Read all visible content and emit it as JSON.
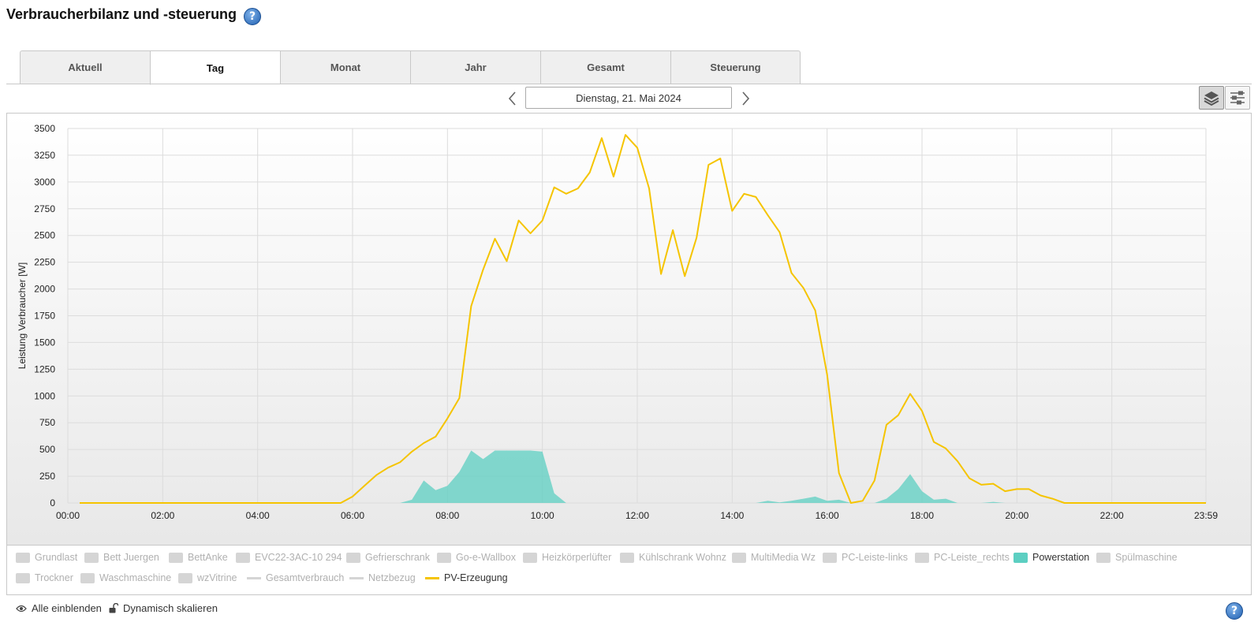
{
  "page": {
    "title": "Verbraucherbilanz und -steuerung"
  },
  "tabs": [
    {
      "label": "Aktuell",
      "active": false
    },
    {
      "label": "Tag",
      "active": true
    },
    {
      "label": "Monat",
      "active": false
    },
    {
      "label": "Jahr",
      "active": false
    },
    {
      "label": "Gesamt",
      "active": false
    },
    {
      "label": "Steuerung",
      "active": false
    }
  ],
  "date_nav": {
    "date": "Dienstag, 21. Mai 2024"
  },
  "chart_data": {
    "type": "area",
    "ylabel": "Leistung Verbraucher [W]",
    "ylim": [
      0,
      3500
    ],
    "yticks": [
      0,
      250,
      500,
      750,
      1000,
      1250,
      1500,
      1750,
      2000,
      2250,
      2500,
      2750,
      3000,
      3250,
      3500
    ],
    "xticks": [
      "00:00",
      "02:00",
      "04:00",
      "06:00",
      "08:00",
      "10:00",
      "12:00",
      "14:00",
      "16:00",
      "18:00",
      "20:00",
      "22:00",
      "23:59"
    ],
    "grid": true,
    "series": [
      {
        "name": "PV-Erzeugung",
        "kind": "line",
        "color": "#f5c400",
        "points": [
          [
            "00:15",
            0
          ],
          [
            "05:45",
            0
          ],
          [
            "06:00",
            60
          ],
          [
            "06:15",
            160
          ],
          [
            "06:30",
            260
          ],
          [
            "06:45",
            330
          ],
          [
            "07:00",
            380
          ],
          [
            "07:15",
            480
          ],
          [
            "07:30",
            560
          ],
          [
            "07:45",
            620
          ],
          [
            "08:00",
            790
          ],
          [
            "08:15",
            980
          ],
          [
            "08:30",
            1840
          ],
          [
            "08:45",
            2180
          ],
          [
            "09:00",
            2470
          ],
          [
            "09:15",
            2260
          ],
          [
            "09:30",
            2640
          ],
          [
            "09:45",
            2520
          ],
          [
            "10:00",
            2640
          ],
          [
            "10:15",
            2950
          ],
          [
            "10:30",
            2890
          ],
          [
            "10:45",
            2940
          ],
          [
            "11:00",
            3090
          ],
          [
            "11:15",
            3410
          ],
          [
            "11:30",
            3050
          ],
          [
            "11:45",
            3440
          ],
          [
            "12:00",
            3320
          ],
          [
            "12:15",
            2940
          ],
          [
            "12:30",
            2140
          ],
          [
            "12:45",
            2550
          ],
          [
            "13:00",
            2120
          ],
          [
            "13:15",
            2480
          ],
          [
            "13:30",
            3160
          ],
          [
            "13:45",
            3220
          ],
          [
            "14:00",
            2730
          ],
          [
            "14:15",
            2890
          ],
          [
            "14:30",
            2860
          ],
          [
            "14:45",
            2690
          ],
          [
            "15:00",
            2530
          ],
          [
            "15:15",
            2150
          ],
          [
            "15:30",
            2010
          ],
          [
            "15:45",
            1800
          ],
          [
            "16:00",
            1200
          ],
          [
            "16:15",
            280
          ],
          [
            "16:30",
            0
          ],
          [
            "16:45",
            20
          ],
          [
            "17:00",
            210
          ],
          [
            "17:15",
            730
          ],
          [
            "17:30",
            820
          ],
          [
            "17:45",
            1020
          ],
          [
            "18:00",
            860
          ],
          [
            "18:15",
            570
          ],
          [
            "18:30",
            510
          ],
          [
            "18:45",
            390
          ],
          [
            "19:00",
            230
          ],
          [
            "19:15",
            170
          ],
          [
            "19:30",
            180
          ],
          [
            "19:45",
            110
          ],
          [
            "20:00",
            130
          ],
          [
            "20:15",
            130
          ],
          [
            "20:30",
            70
          ],
          [
            "20:45",
            40
          ],
          [
            "21:00",
            0
          ],
          [
            "23:59",
            0
          ]
        ]
      },
      {
        "name": "Powerstation",
        "kind": "area",
        "color": "#5ccfc2",
        "points": [
          [
            "06:45",
            0
          ],
          [
            "07:00",
            0
          ],
          [
            "07:15",
            30
          ],
          [
            "07:30",
            210
          ],
          [
            "07:45",
            120
          ],
          [
            "08:00",
            160
          ],
          [
            "08:15",
            290
          ],
          [
            "08:30",
            490
          ],
          [
            "08:45",
            410
          ],
          [
            "09:00",
            490
          ],
          [
            "09:15",
            490
          ],
          [
            "09:30",
            490
          ],
          [
            "09:45",
            490
          ],
          [
            "10:00",
            480
          ],
          [
            "10:15",
            90
          ],
          [
            "10:30",
            0
          ],
          [
            "14:30",
            0
          ],
          [
            "14:45",
            20
          ],
          [
            "15:00",
            5
          ],
          [
            "15:15",
            20
          ],
          [
            "15:30",
            40
          ],
          [
            "15:45",
            60
          ],
          [
            "16:00",
            20
          ],
          [
            "16:15",
            30
          ],
          [
            "16:30",
            0
          ],
          [
            "17:00",
            0
          ],
          [
            "17:15",
            40
          ],
          [
            "17:30",
            130
          ],
          [
            "17:45",
            270
          ],
          [
            "18:00",
            110
          ],
          [
            "18:15",
            30
          ],
          [
            "18:30",
            40
          ],
          [
            "18:45",
            0
          ],
          [
            "19:15",
            0
          ],
          [
            "19:30",
            10
          ],
          [
            "19:45",
            0
          ]
        ]
      }
    ]
  },
  "legend": {
    "items": [
      {
        "label": "Grundlast",
        "marker": "box",
        "color": "#d5d5d5",
        "visible": false
      },
      {
        "label": "Bett Juergen",
        "marker": "box",
        "color": "#d5d5d5",
        "visible": false
      },
      {
        "label": "BettAnke",
        "marker": "box",
        "color": "#d5d5d5",
        "visible": false
      },
      {
        "label": "EVC22-3AC-10 294",
        "marker": "box",
        "color": "#d5d5d5",
        "visible": false
      },
      {
        "label": "Gefrierschrank",
        "marker": "box",
        "color": "#d5d5d5",
        "visible": false
      },
      {
        "label": "Go-e-Wallbox",
        "marker": "box",
        "color": "#d5d5d5",
        "visible": false
      },
      {
        "label": "Heizkörperlüfter",
        "marker": "box",
        "color": "#d5d5d5",
        "visible": false
      },
      {
        "label": "Kühlschrank Wohnz",
        "marker": "box",
        "color": "#d5d5d5",
        "visible": false
      },
      {
        "label": "MultiMedia Wz",
        "marker": "box",
        "color": "#d5d5d5",
        "visible": false
      },
      {
        "label": "PC-Leiste-links",
        "marker": "box",
        "color": "#d5d5d5",
        "visible": false
      },
      {
        "label": "PC-Leiste_rechts",
        "marker": "box",
        "color": "#d5d5d5",
        "visible": false
      },
      {
        "label": "Powerstation",
        "marker": "box",
        "color": "#5ccfc2",
        "visible": true
      },
      {
        "label": "Spülmaschine",
        "marker": "box",
        "color": "#d5d5d5",
        "visible": false
      },
      {
        "label": "Trockner",
        "marker": "box",
        "color": "#d5d5d5",
        "visible": false
      },
      {
        "label": "Waschmaschine",
        "marker": "box",
        "color": "#d5d5d5",
        "visible": false
      },
      {
        "label": "wzVitrine",
        "marker": "box",
        "color": "#d5d5d5",
        "visible": false
      },
      {
        "label": "Gesamtverbrauch",
        "marker": "line",
        "color": "#d5d5d5",
        "visible": false
      },
      {
        "label": "Netzbezug",
        "marker": "line",
        "color": "#d5d5d5",
        "visible": false
      },
      {
        "label": "PV-Erzeugung",
        "marker": "line",
        "color": "#f5c400",
        "visible": true
      }
    ]
  },
  "toolbar": {
    "show_all": "Alle einblenden",
    "dynamic_scale": "Dynamisch skalieren"
  },
  "help": {
    "symbol": "?"
  },
  "icons": {
    "help": "help-icon",
    "prev": "chevron-left-icon",
    "next": "chevron-right-icon",
    "stacked": "layers-icon",
    "settings": "sliders-icon",
    "eye": "eye-icon",
    "lock": "unlock-icon"
  }
}
